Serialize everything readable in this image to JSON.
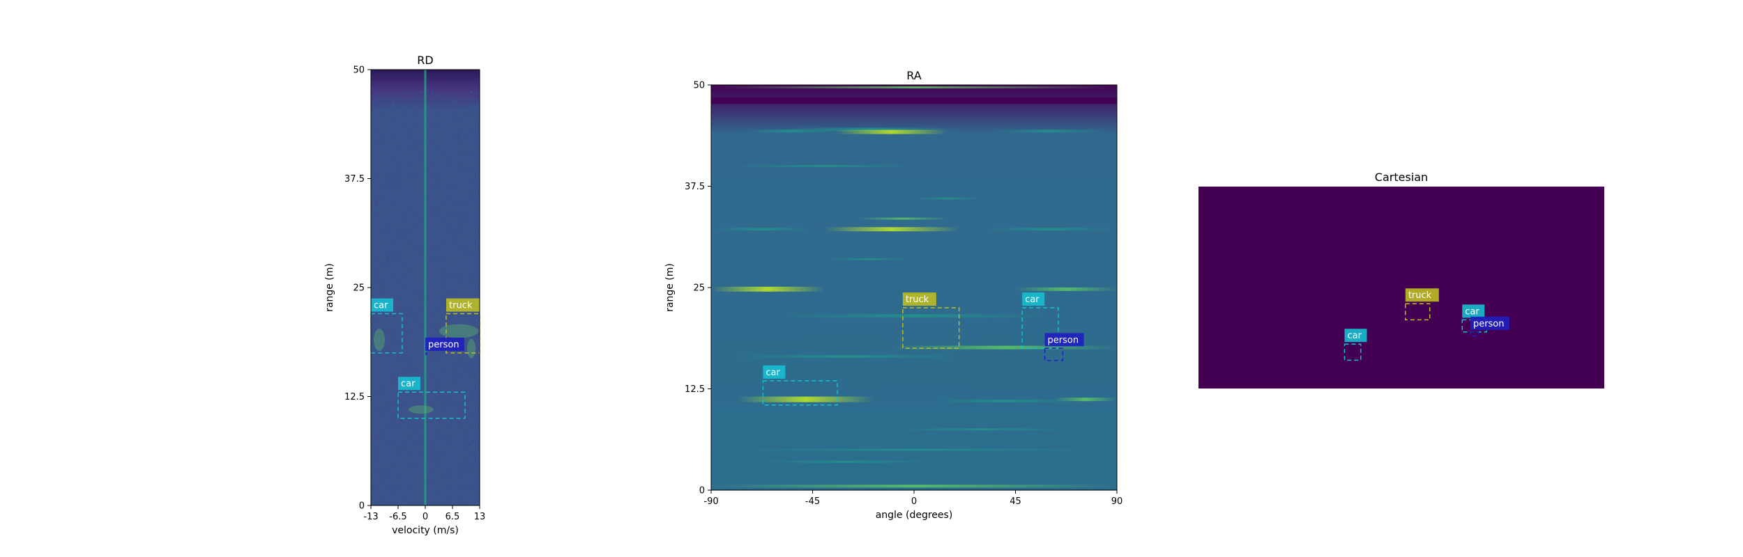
{
  "chart_data": [
    {
      "type": "heatmap",
      "title": "RD",
      "xlabel": "velocity (m/s)",
      "ylabel": "range (m)",
      "xlim": [
        -13,
        13
      ],
      "ylim": [
        0,
        50
      ],
      "xticks": [
        -13,
        -6.5,
        0,
        6.5,
        13
      ],
      "xtick_labels": [
        "-13",
        "-6.5",
        "0",
        "6.5",
        "13"
      ],
      "yticks": [
        0,
        12.5,
        25,
        37.5,
        50
      ],
      "ytick_labels": [
        "0",
        "12.5",
        "25",
        "37.5",
        "50"
      ],
      "detections": [
        {
          "label": "car",
          "color": "#17becf",
          "x": [
            -13,
            -5.5
          ],
          "y": [
            17.5,
            22
          ]
        },
        {
          "label": "truck",
          "color": "#bcbd22",
          "x": [
            5,
            13
          ],
          "y": [
            17.5,
            22
          ]
        },
        {
          "label": "person",
          "color": "#1f1fbf",
          "x": [
            0,
            0
          ],
          "y": [
            17.5,
            17.5
          ]
        },
        {
          "label": "car",
          "color": "#17becf",
          "x": [
            -6.5,
            9.5
          ],
          "y": [
            10,
            13
          ]
        }
      ]
    },
    {
      "type": "heatmap",
      "title": "RA",
      "xlabel": "angle (degrees)",
      "ylabel": "range (m)",
      "xlim": [
        -90,
        90
      ],
      "ylim": [
        0,
        50
      ],
      "xticks": [
        -90,
        -45,
        0,
        45,
        90
      ],
      "xtick_labels": [
        "-90",
        "-45",
        "0",
        "45",
        "90"
      ],
      "yticks": [
        0,
        12.5,
        25,
        37.5,
        50
      ],
      "ytick_labels": [
        "0",
        "12.5",
        "25",
        "37.5",
        "50"
      ],
      "detections": [
        {
          "label": "truck",
          "color": "#bcbd22",
          "x": [
            -5,
            20
          ],
          "y": [
            17.5,
            22.5
          ]
        },
        {
          "label": "car",
          "color": "#17becf",
          "x": [
            48,
            64
          ],
          "y": [
            17.5,
            22.5
          ]
        },
        {
          "label": "person",
          "color": "#1f1fbf",
          "x": [
            58,
            66
          ],
          "y": [
            16,
            17.5
          ]
        },
        {
          "label": "car",
          "color": "#17becf",
          "x": [
            -67,
            -34
          ],
          "y": [
            10.5,
            13.5
          ]
        }
      ]
    },
    {
      "type": "heatmap",
      "title": "Cartesian",
      "xlim": [
        -50,
        50
      ],
      "ylim": [
        0,
        50
      ],
      "detections": [
        {
          "label": "truck",
          "color": "#bcbd22",
          "x": [
            1,
            7
          ],
          "y": [
            17,
            21
          ]
        },
        {
          "label": "car",
          "color": "#17becf",
          "x": [
            -14,
            -10
          ],
          "y": [
            7,
            11
          ]
        },
        {
          "label": "car",
          "color": "#17becf",
          "x": [
            15,
            21
          ],
          "y": [
            14,
            17
          ]
        },
        {
          "label": "person",
          "color": "#1f1fbf",
          "x": [
            17,
            19
          ],
          "y": [
            13,
            14
          ]
        }
      ]
    }
  ],
  "colors": {
    "viridis_dark": "#440154",
    "map_background": "#3b528b",
    "tick_color": "#000000"
  }
}
